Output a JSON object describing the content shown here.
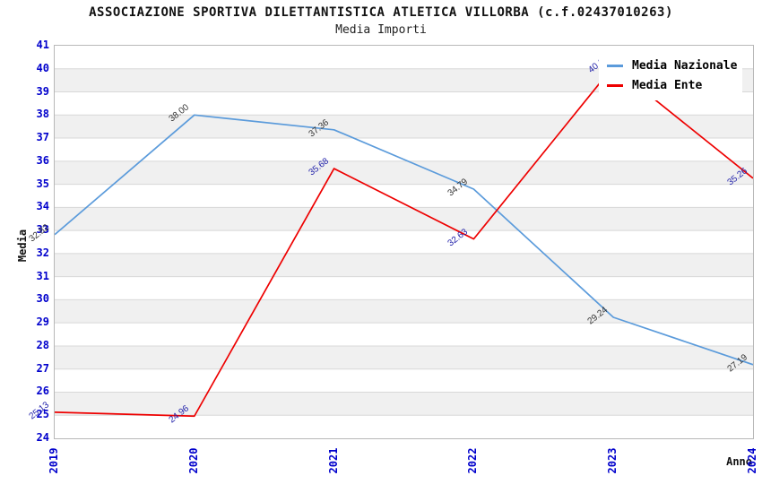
{
  "title": "ASSOCIAZIONE SPORTIVA DILETTANTISTICA ATLETICA VILLORBA (c.f.02437010263)",
  "subtitle": "Media Importi",
  "chart_data": {
    "type": "line",
    "x": [
      "2019",
      "2020",
      "2021",
      "2022",
      "2023",
      "2024"
    ],
    "xlabel": "Anno",
    "ylabel": "Media",
    "ylim": [
      24,
      41
    ],
    "y_ticks": [
      24,
      25,
      26,
      27,
      28,
      29,
      30,
      31,
      32,
      33,
      34,
      35,
      36,
      37,
      38,
      39,
      40,
      41
    ],
    "grid": "horizontal",
    "legend_position": "top-right",
    "series": [
      {
        "name": "Media Nazionale",
        "color": "#5b9bdb",
        "label_color": "#333333",
        "values": [
          32.82,
          38.0,
          37.36,
          34.79,
          29.24,
          27.19
        ],
        "labels": [
          "32.82",
          "38.00",
          "37.36",
          "34.79",
          "29.24",
          "27.19"
        ]
      },
      {
        "name": "Media Ente",
        "color": "#ee0000",
        "label_color": "#2222aa",
        "values": [
          25.13,
          24.96,
          35.68,
          32.63,
          40.11,
          35.26
        ],
        "labels": [
          "25.13",
          "24.96",
          "35.68",
          "32.63",
          "40.11",
          "35.26"
        ]
      }
    ]
  },
  "colors": {
    "tick_label": "#0000cc",
    "band": "#f0f0f0",
    "gridline": "#d8d8d8",
    "plot_border": "#b8b8b8"
  }
}
